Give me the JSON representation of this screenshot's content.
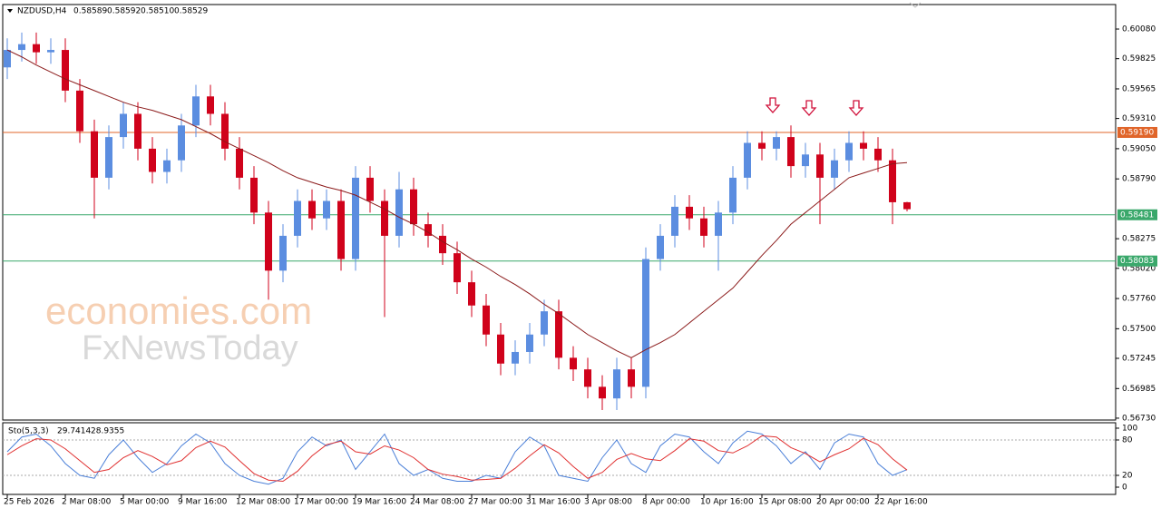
{
  "chart_data": {
    "type": "candlestick",
    "title": "NZDUSD,H4",
    "header_values": [
      "0.58589",
      "0.58592",
      "0.58510",
      "0.58529"
    ],
    "watermark": [
      "economies.com",
      "FxNewsToday"
    ],
    "categories": [
      "25 Feb 2026",
      null,
      null,
      null,
      "2 Mar 08:00",
      null,
      null,
      null,
      "5 Mar 00:00",
      null,
      null,
      null,
      "9 Mar 16:00",
      null,
      null,
      null,
      "12 Mar 08:00",
      null,
      null,
      null,
      "17 Mar 00:00",
      null,
      null,
      null,
      "19 Mar 16:00",
      null,
      null,
      null,
      "24 Mar 08:00",
      null,
      null,
      null,
      "27 Mar 00:00",
      null,
      null,
      null,
      "31 Mar 16:00",
      null,
      null,
      null,
      "3 Apr 08:00",
      null,
      null,
      null,
      "8 Apr 00:00",
      null,
      null,
      null,
      "10 Apr 16:00",
      null,
      null,
      null,
      "15 Apr 08:00",
      null,
      null,
      null,
      "20 Apr 00:00",
      null,
      null,
      null,
      "22 Apr 16:00",
      null,
      null
    ],
    "open": [
      0.5975,
      0.599,
      0.5995,
      0.5988,
      0.599,
      0.5955,
      0.592,
      0.588,
      0.5915,
      0.5935,
      0.5905,
      0.5885,
      0.5895,
      0.5925,
      0.595,
      0.5935,
      0.5905,
      0.588,
      0.585,
      0.58,
      0.583,
      0.586,
      0.5845,
      0.586,
      0.581,
      0.588,
      0.586,
      0.583,
      0.587,
      0.584,
      0.583,
      0.5815,
      0.579,
      0.577,
      0.5745,
      0.572,
      0.573,
      0.5745,
      0.5765,
      0.5725,
      0.5715,
      0.57,
      0.569,
      0.5715,
      0.57,
      0.581,
      0.583,
      0.5855,
      0.5845,
      0.583,
      0.585,
      0.588,
      0.591,
      0.5905,
      0.5915,
      0.589,
      0.59,
      0.588,
      0.5895,
      0.591,
      0.5905,
      0.5895,
      0.58589
    ],
    "high": [
      0.6,
      0.6005,
      0.6005,
      0.6,
      0.6,
      0.5965,
      0.593,
      0.5925,
      0.5945,
      0.5945,
      0.5915,
      0.5905,
      0.5935,
      0.596,
      0.596,
      0.5945,
      0.5915,
      0.589,
      0.586,
      0.584,
      0.587,
      0.587,
      0.587,
      0.587,
      0.589,
      0.589,
      0.587,
      0.5885,
      0.588,
      0.585,
      0.584,
      0.5825,
      0.58,
      0.578,
      0.5755,
      0.574,
      0.5755,
      0.5775,
      0.5775,
      0.5735,
      0.5725,
      0.571,
      0.5725,
      0.5725,
      0.582,
      0.584,
      0.5865,
      0.5865,
      0.5855,
      0.586,
      0.589,
      0.592,
      0.592,
      0.592,
      0.5925,
      0.591,
      0.591,
      0.5905,
      0.592,
      0.592,
      0.5915,
      0.5905,
      0.58592
    ],
    "low": [
      0.5965,
      0.598,
      0.5978,
      0.5978,
      0.5945,
      0.591,
      0.5845,
      0.587,
      0.5905,
      0.5895,
      0.5875,
      0.5875,
      0.5885,
      0.5915,
      0.5925,
      0.5895,
      0.587,
      0.584,
      0.5775,
      0.579,
      0.582,
      0.5835,
      0.5835,
      0.58,
      0.58,
      0.585,
      0.576,
      0.582,
      0.583,
      0.582,
      0.5805,
      0.578,
      0.576,
      0.5735,
      0.571,
      0.571,
      0.572,
      0.5735,
      0.5715,
      0.5705,
      0.569,
      0.568,
      0.568,
      0.569,
      0.569,
      0.58,
      0.582,
      0.5835,
      0.582,
      0.58,
      0.584,
      0.587,
      0.5895,
      0.5895,
      0.588,
      0.588,
      0.584,
      0.587,
      0.5885,
      0.5895,
      0.5885,
      0.584,
      0.5851
    ],
    "close": [
      0.599,
      0.5995,
      0.5988,
      0.599,
      0.5955,
      0.592,
      0.588,
      0.5915,
      0.5935,
      0.5905,
      0.5885,
      0.5895,
      0.5925,
      0.595,
      0.5935,
      0.5905,
      0.588,
      0.585,
      0.58,
      0.583,
      0.586,
      0.5845,
      0.586,
      0.581,
      0.588,
      0.586,
      0.583,
      0.587,
      0.584,
      0.583,
      0.5815,
      0.579,
      0.577,
      0.5745,
      0.572,
      0.573,
      0.5745,
      0.5765,
      0.5725,
      0.5715,
      0.57,
      0.569,
      0.5715,
      0.57,
      0.581,
      0.583,
      0.5855,
      0.5845,
      0.583,
      0.585,
      0.588,
      0.591,
      0.5905,
      0.5915,
      0.589,
      0.59,
      0.588,
      0.5895,
      0.591,
      0.5905,
      0.5895,
      0.58589,
      0.58529
    ],
    "up_color": "#5b8de0",
    "down_color": "#d0021b",
    "ma_values": [
      0.599,
      0.5984,
      0.5977,
      0.5971,
      0.5965,
      0.596,
      0.5955,
      0.595,
      0.5945,
      0.5941,
      0.5938,
      0.5934,
      0.593,
      0.5924,
      0.5918,
      0.5911,
      0.5905,
      0.5899,
      0.5893,
      0.5886,
      0.588,
      0.5876,
      0.5872,
      0.5869,
      0.5865,
      0.5859,
      0.5853,
      0.5846,
      0.584,
      0.5833,
      0.5825,
      0.5818,
      0.581,
      0.5803,
      0.5795,
      0.5788,
      0.578,
      0.5771,
      0.5763,
      0.5754,
      0.5745,
      0.5738,
      0.5731,
      0.5725,
      0.5732,
      0.5738,
      0.5745,
      0.5755,
      0.5765,
      0.5775,
      0.5785,
      0.5799,
      0.5813,
      0.5826,
      0.584,
      0.585,
      0.586,
      0.587,
      0.588,
      0.5884,
      0.5888,
      0.5892,
      0.5893
    ],
    "ma_color": "#8b1a1a",
    "ylim": [
      0.56714,
      0.60291
    ],
    "yticks": [
      {
        "value": 0.6008,
        "label": "0.60080"
      },
      0.59825,
      0.59565,
      {
        "value": 0.5931,
        "label": "0.59310"
      },
      {
        "value": 0.5905,
        "label": "0.59050"
      },
      {
        "value": 0.5879,
        "label": "0.58790"
      },
      0.58275,
      {
        "value": 0.5802,
        "label": "0.58020"
      },
      {
        "value": 0.5776,
        "label": "0.57760"
      },
      {
        "value": 0.575,
        "label": "0.57500"
      },
      0.57245,
      0.56985,
      {
        "value": 0.5673,
        "label": "0.56730"
      }
    ],
    "levels": [
      {
        "value": 0.5919,
        "label": "0.59190",
        "color": "#e0652a"
      },
      {
        "value": 0.58481,
        "label": "0.58481",
        "color": "#3aa86b"
      },
      {
        "value": 0.58083,
        "label": "0.58083",
        "color": "#3aa86b"
      }
    ],
    "stochastic": {
      "label": "Sto(5,3,3)",
      "main": {
        "color": "#4a7fd8",
        "values": [
          60,
          85,
          90,
          70,
          40,
          20,
          15,
          55,
          80,
          50,
          25,
          40,
          70,
          90,
          75,
          40,
          20,
          10,
          5,
          15,
          60,
          85,
          70,
          80,
          30,
          60,
          90,
          40,
          20,
          30,
          15,
          10,
          10,
          20,
          15,
          60,
          85,
          70,
          20,
          15,
          10,
          50,
          80,
          40,
          25,
          70,
          90,
          85,
          60,
          40,
          75,
          95,
          90,
          70,
          40,
          60,
          30,
          75,
          90,
          85,
          40,
          20,
          29.7414
        ]
      },
      "signal": {
        "color": "#e03030",
        "values": [
          55,
          70,
          82,
          80,
          65,
          45,
          25,
          30,
          50,
          62,
          52,
          38,
          45,
          67,
          78,
          68,
          45,
          23,
          12,
          10,
          27,
          53,
          72,
          78,
          60,
          56,
          70,
          63,
          50,
          30,
          22,
          18,
          12,
          13,
          15,
          32,
          53,
          72,
          58,
          35,
          15,
          25,
          47,
          57,
          48,
          45,
          62,
          82,
          78,
          62,
          58,
          70,
          87,
          85,
          67,
          57,
          43,
          55,
          65,
          83,
          72,
          48,
          28.9355
        ]
      },
      "ylim": [
        -12.3,
        109.2
      ],
      "yticks": [
        100,
        80,
        20,
        0
      ],
      "levels": [
        80,
        20
      ]
    }
  }
}
